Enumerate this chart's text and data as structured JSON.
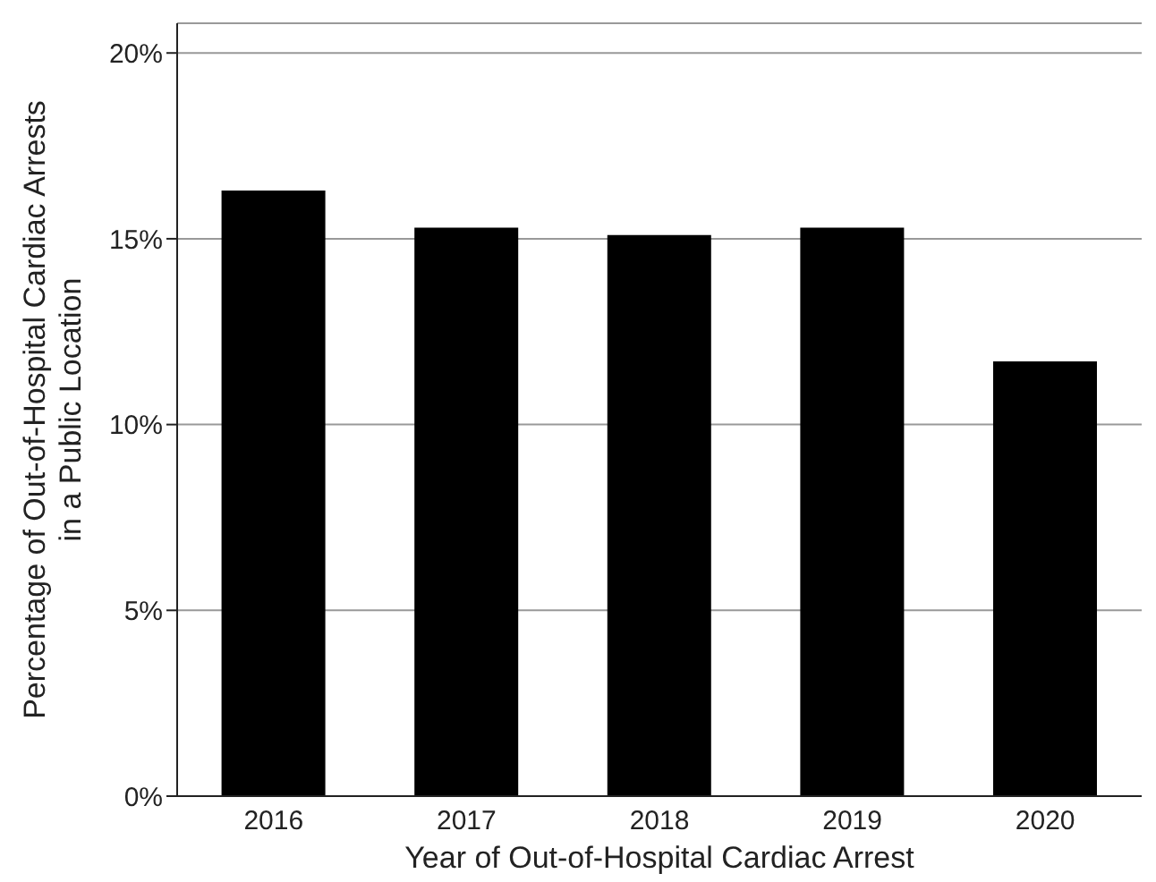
{
  "chart_data": {
    "type": "bar",
    "xlabel": "Year of Out-of-Hospital Cardiac Arrest",
    "ylabel": "Percentage of Out-of-Hospital Cardiac Arrests\nin a Public Location",
    "categories": [
      "2016",
      "2017",
      "2018",
      "2019",
      "2020"
    ],
    "values": [
      16.3,
      15.3,
      15.1,
      15.3,
      11.7
    ],
    "color": "#000000",
    "ylim": [
      0,
      20.8
    ],
    "yticks": [
      {
        "value": 0,
        "label": "0%"
      },
      {
        "value": 5,
        "label": "5%"
      },
      {
        "value": 10,
        "label": "10%"
      },
      {
        "value": 15,
        "label": "15%"
      },
      {
        "value": 20,
        "label": "20%"
      }
    ],
    "grid": "y"
  }
}
